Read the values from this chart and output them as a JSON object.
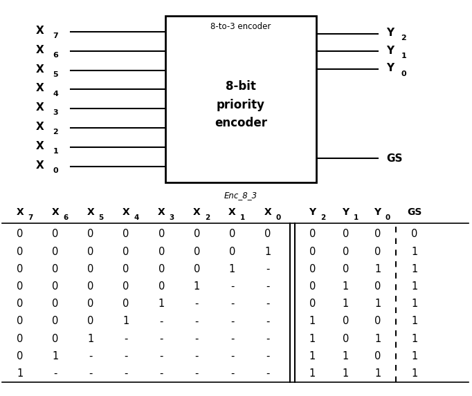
{
  "inputs": [
    "X",
    "X",
    "X",
    "X",
    "X",
    "X",
    "X",
    "X"
  ],
  "input_subs": [
    "7",
    "6",
    "5",
    "4",
    "3",
    "2",
    "1",
    "0"
  ],
  "outputs_top": [
    "Y",
    "Y",
    "Y"
  ],
  "output_subs": [
    "2",
    "1",
    "0"
  ],
  "output_gs": "GS",
  "box_label_top": "8-to-3 encoder",
  "box_label_main": "8-bit\npriority\nencoder",
  "box_label_italic": "Enc_8_3",
  "table_headers": [
    "X",
    "X",
    "X",
    "X",
    "X",
    "X",
    "X",
    "X",
    "Y",
    "Y",
    "Y",
    "GS"
  ],
  "table_header_subs": [
    "7",
    "6",
    "5",
    "4",
    "3",
    "2",
    "1",
    "0",
    "2",
    "1",
    "0",
    ""
  ],
  "table_rows": [
    [
      "0",
      "0",
      "0",
      "0",
      "0",
      "0",
      "0",
      "0",
      "0",
      "0",
      "0",
      "0"
    ],
    [
      "0",
      "0",
      "0",
      "0",
      "0",
      "0",
      "0",
      "1",
      "0",
      "0",
      "0",
      "1"
    ],
    [
      "0",
      "0",
      "0",
      "0",
      "0",
      "0",
      "1",
      "-",
      "0",
      "0",
      "1",
      "1"
    ],
    [
      "0",
      "0",
      "0",
      "0",
      "0",
      "1",
      "-",
      "-",
      "0",
      "1",
      "0",
      "1"
    ],
    [
      "0",
      "0",
      "0",
      "0",
      "1",
      "-",
      "-",
      "-",
      "0",
      "1",
      "1",
      "1"
    ],
    [
      "0",
      "0",
      "0",
      "1",
      "-",
      "-",
      "-",
      "-",
      "1",
      "0",
      "0",
      "1"
    ],
    [
      "0",
      "0",
      "1",
      "-",
      "-",
      "-",
      "-",
      "-",
      "1",
      "0",
      "1",
      "1"
    ],
    [
      "0",
      "1",
      "-",
      "-",
      "-",
      "-",
      "-",
      "-",
      "1",
      "1",
      "0",
      "1"
    ],
    [
      "1",
      "-",
      "-",
      "-",
      "-",
      "-",
      "-",
      "-",
      "1",
      "1",
      "1",
      "1"
    ]
  ],
  "fig_w": 6.82,
  "fig_h": 5.73
}
